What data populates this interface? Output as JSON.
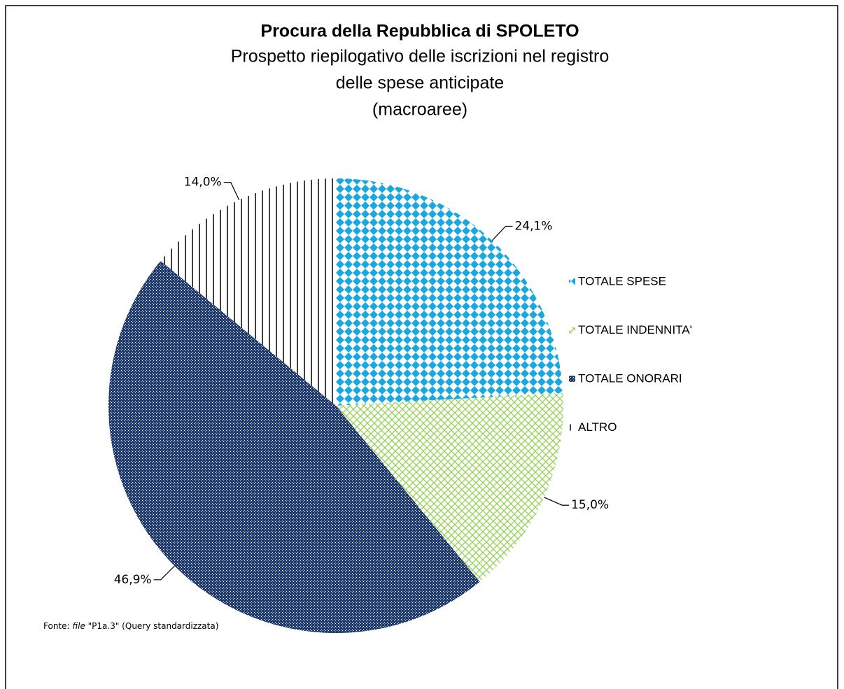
{
  "chart_data": {
    "type": "pie",
    "title": "Procura della Repubblica di SPOLETO",
    "subtitle": [
      "Prospetto riepilogativo delle iscrizioni nel registro",
      "delle spese anticipate",
      "(macroaree)"
    ],
    "categories": [
      "TOTALE SPESE",
      "TOTALE INDENNITA'",
      "TOTALE ONORARI",
      "ALTRO"
    ],
    "values": [
      24.1,
      15.0,
      46.9,
      14.0
    ],
    "value_labels": [
      "24,1%",
      "15,0%",
      "46,9%",
      "14,0%"
    ],
    "colors": [
      "#1aa7e0",
      "#92d050",
      "#1f3a6e",
      "#000000"
    ],
    "patterns": [
      "dots",
      "cross",
      "checker",
      "vlines"
    ],
    "legend": "right",
    "note": [
      "Fonte: ",
      "file",
      " \"P1a.3\" (Query standardizzata)"
    ]
  }
}
